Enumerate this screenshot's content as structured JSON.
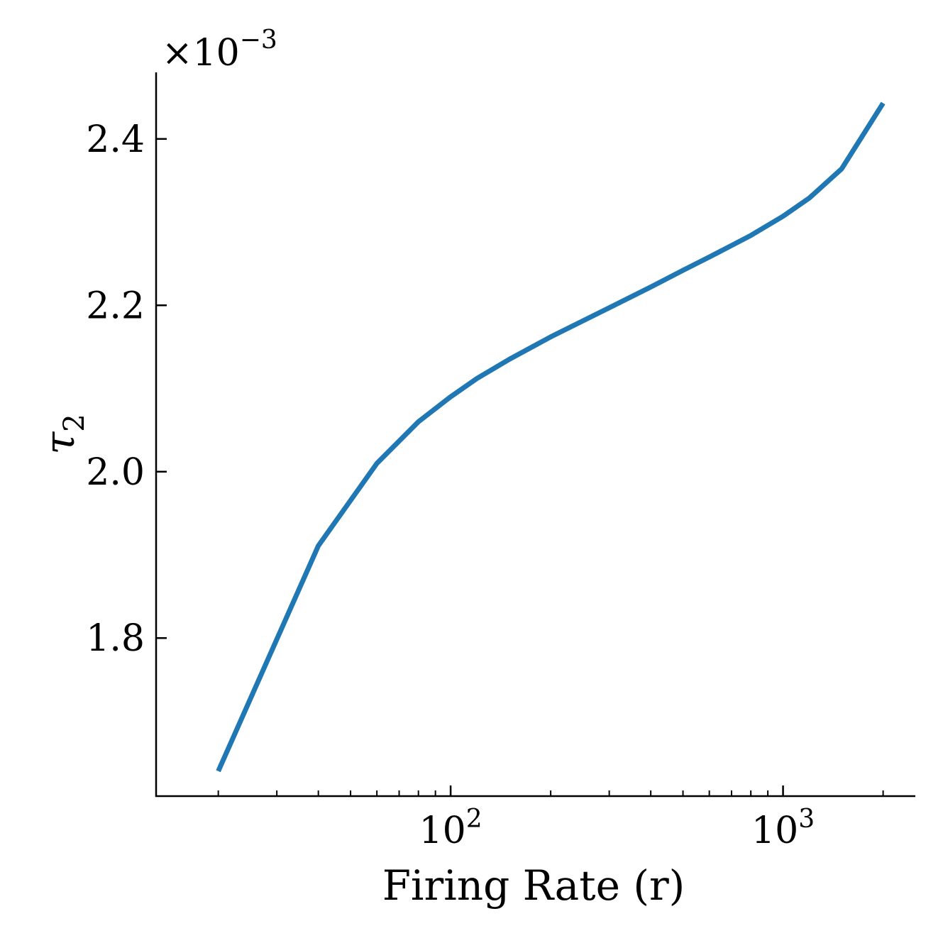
{
  "chart_data": {
    "type": "line",
    "xscale": "log",
    "xlabel": "Firing Rate (r)",
    "ylabel": "τ",
    "ylabel_subscript": "2",
    "y_multiplier_base": "×10",
    "y_multiplier_exponent": "−3",
    "xlim": [
      13,
      2500
    ],
    "ylim": [
      1.61,
      2.48
    ],
    "xticks": [
      {
        "value": 100,
        "base": "10",
        "exp": "2"
      },
      {
        "value": 1000,
        "base": "10",
        "exp": "3"
      }
    ],
    "yticks": [
      {
        "value": 1.8,
        "label": "1.8"
      },
      {
        "value": 2.0,
        "label": "2.0"
      },
      {
        "value": 2.2,
        "label": "2.2"
      },
      {
        "value": 2.4,
        "label": "2.4"
      }
    ],
    "series": [
      {
        "color": "#1f77b4",
        "x": [
          20,
          40,
          60,
          80,
          100,
          120,
          150,
          200,
          300,
          400,
          500,
          600,
          800,
          1000,
          1200,
          1500,
          2000
        ],
        "y": [
          1.64,
          1.911,
          2.01,
          2.06,
          2.09,
          2.112,
          2.135,
          2.162,
          2.197,
          2.222,
          2.242,
          2.258,
          2.284,
          2.307,
          2.329,
          2.364,
          2.443
        ]
      }
    ]
  }
}
